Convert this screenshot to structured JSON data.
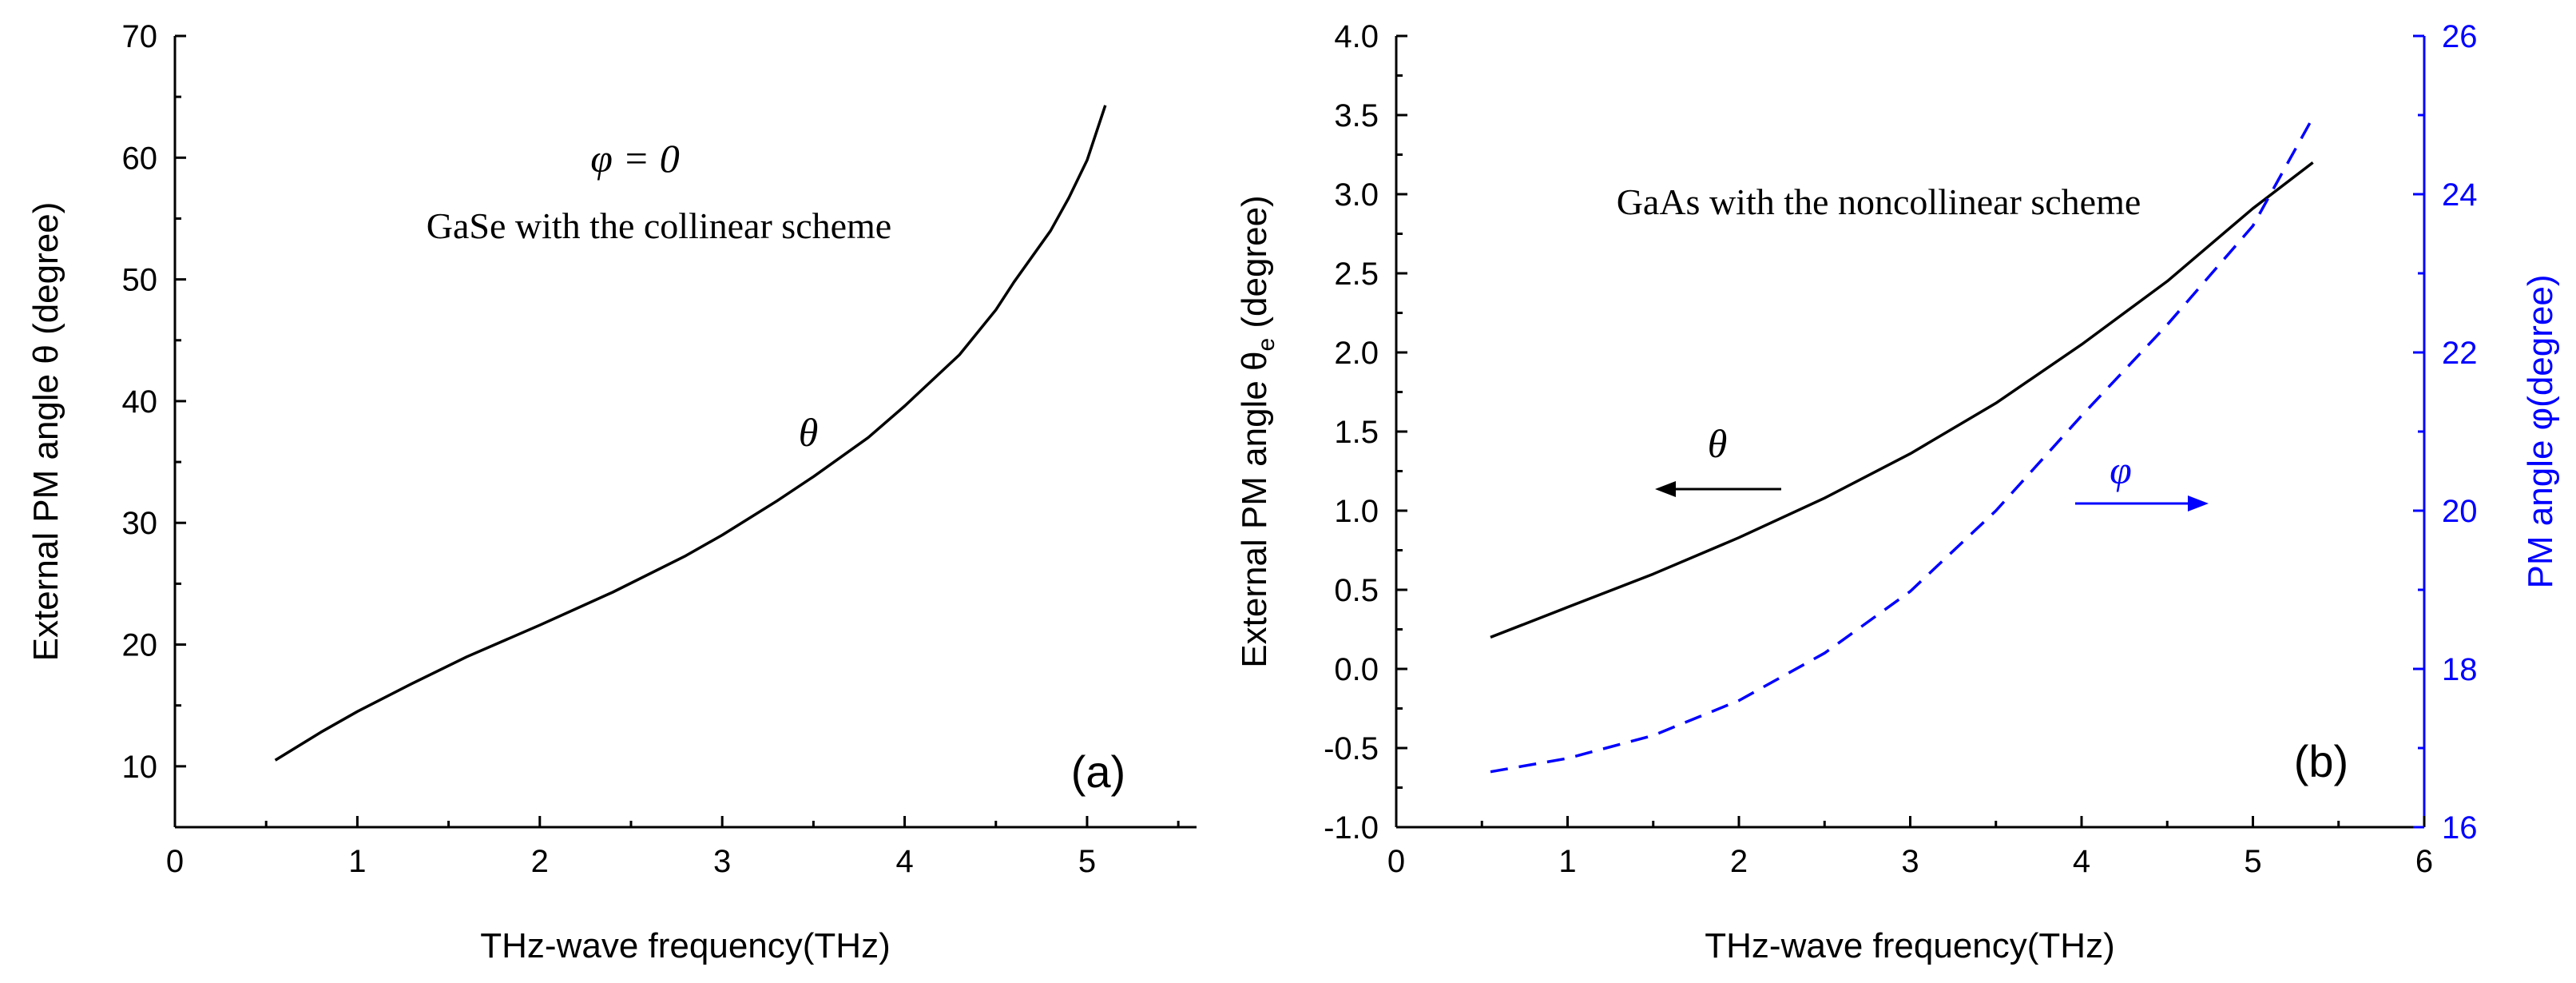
{
  "chart_data": [
    {
      "id": "a",
      "type": "line",
      "panel_label": "(a)",
      "xlabel": "THz-wave frequency(THz)",
      "ylabel": "External PM angle θ (degree)",
      "xlim": [
        0,
        5.6
      ],
      "ylim": [
        5,
        70
      ],
      "xticks": [
        0,
        1,
        2,
        3,
        4,
        5
      ],
      "yticks": [
        10,
        20,
        30,
        40,
        50,
        60,
        70
      ],
      "annotations": {
        "phi_eq": "φ = 0",
        "scheme": "GaSe with the collinear scheme",
        "theta": "θ"
      },
      "series": [
        {
          "name": "θ",
          "color": "#000000",
          "style": "solid",
          "x": [
            0.55,
            0.8,
            1.0,
            1.3,
            1.6,
            2.0,
            2.4,
            2.8,
            3.0,
            3.3,
            3.5,
            3.8,
            4.0,
            4.3,
            4.5,
            4.6,
            4.8,
            4.9,
            5.0,
            5.1
          ],
          "y": [
            10.5,
            12.8,
            14.5,
            16.8,
            19.0,
            21.6,
            24.3,
            27.3,
            29.0,
            31.8,
            33.8,
            37.0,
            39.6,
            43.8,
            47.5,
            49.8,
            54.0,
            56.7,
            59.8,
            64.3
          ]
        }
      ]
    },
    {
      "id": "b",
      "type": "line",
      "panel_label": "(b)",
      "xlabel": "THz-wave frequency(THz)",
      "ylabel": "External PM angle θe (degree)",
      "ylabel_main": "External PM angle θ",
      "ylabel_sub": "e",
      "ylabel_tail": " (degree)",
      "y2label": "PM angle φ(degree)",
      "xlim": [
        0,
        6
      ],
      "ylim": [
        -1.0,
        4.0
      ],
      "y2lim": [
        16,
        26
      ],
      "xticks": [
        0,
        1,
        2,
        3,
        4,
        5,
        6
      ],
      "yticks": [
        "-1.0",
        "-0.5",
        "0.0",
        "0.5",
        "1.0",
        "1.5",
        "2.0",
        "2.5",
        "3.0",
        "3.5",
        "4.0"
      ],
      "y2ticks": [
        16,
        18,
        20,
        22,
        24,
        26
      ],
      "annotations": {
        "scheme": "GaAs with the noncollinear scheme",
        "theta": "θ",
        "phi": "φ"
      },
      "series": [
        {
          "name": "θ",
          "color": "#000000",
          "style": "solid",
          "axis": "left",
          "x": [
            0.55,
            1.0,
            1.5,
            2.0,
            2.5,
            3.0,
            3.5,
            4.0,
            4.5,
            5.0,
            5.35
          ],
          "y": [
            0.2,
            0.39,
            0.6,
            0.83,
            1.08,
            1.36,
            1.68,
            2.05,
            2.45,
            2.91,
            3.2
          ]
        },
        {
          "name": "φ",
          "color": "#0000ff",
          "style": "dashed",
          "axis": "right",
          "x": [
            0.55,
            1.0,
            1.5,
            2.0,
            2.5,
            3.0,
            3.5,
            4.0,
            4.5,
            5.0,
            5.35
          ],
          "y": [
            16.7,
            16.87,
            17.16,
            17.6,
            18.2,
            18.98,
            20.0,
            21.2,
            22.35,
            23.6,
            24.97
          ]
        }
      ]
    }
  ]
}
